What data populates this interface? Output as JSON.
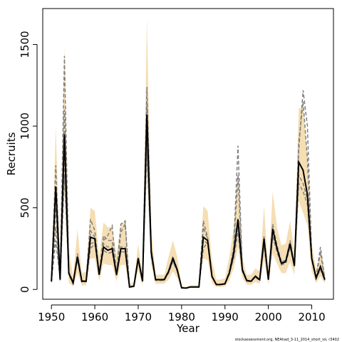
{
  "chart_data": {
    "type": "line",
    "title": "",
    "xlabel": "Year",
    "ylabel": "Recruits",
    "xlim": [
      1948,
      2015
    ],
    "ylim": [
      -60,
      1720
    ],
    "x_ticks": [
      1950,
      1960,
      1970,
      1980,
      1990,
      2000,
      2010
    ],
    "y_ticks": [
      0,
      500,
      1000,
      1500
    ],
    "footer_text": "stockassessment.org, NEAhad_3-11_2014_short_ioi, r3402",
    "colors": {
      "ci_band": "#f5deb3",
      "estimate": "#000000",
      "retro": "#808080"
    },
    "x": [
      1950,
      1951,
      1952,
      1953,
      1954,
      1955,
      1956,
      1957,
      1958,
      1959,
      1960,
      1961,
      1962,
      1963,
      1964,
      1965,
      1966,
      1967,
      1968,
      1969,
      1970,
      1971,
      1972,
      1973,
      1974,
      1975,
      1976,
      1977,
      1978,
      1979,
      1980,
      1981,
      1982,
      1983,
      1984,
      1985,
      1986,
      1987,
      1988,
      1989,
      1990,
      1991,
      1992,
      1993,
      1994,
      1995,
      1996,
      1997,
      1998,
      1999,
      2000,
      2001,
      2002,
      2003,
      2004,
      2005,
      2006,
      2007,
      2008,
      2009,
      2010,
      2011,
      2012,
      2013
    ],
    "estimate": [
      50,
      630,
      60,
      950,
      100,
      40,
      200,
      50,
      50,
      320,
      310,
      90,
      260,
      240,
      250,
      90,
      250,
      250,
      15,
      20,
      190,
      50,
      1070,
      230,
      60,
      60,
      60,
      110,
      190,
      120,
      10,
      8,
      15,
      15,
      15,
      320,
      300,
      80,
      30,
      30,
      35,
      100,
      220,
      430,
      120,
      55,
      50,
      80,
      60,
      310,
      60,
      370,
      250,
      160,
      170,
      280,
      145,
      780,
      730,
      580,
      190,
      70,
      140,
      60
    ],
    "ci_upper": [
      80,
      1000,
      120,
      1490,
      240,
      80,
      370,
      100,
      110,
      500,
      480,
      200,
      410,
      380,
      380,
      210,
      400,
      420,
      30,
      45,
      280,
      80,
      1660,
      380,
      90,
      90,
      90,
      200,
      300,
      200,
      20,
      15,
      25,
      25,
      25,
      510,
      480,
      180,
      60,
      60,
      70,
      200,
      380,
      720,
      200,
      90,
      90,
      130,
      110,
      510,
      100,
      600,
      380,
      270,
      280,
      420,
      230,
      1110,
      1110,
      820,
      280,
      120,
      230,
      100
    ],
    "ci_lower": [
      20,
      380,
      30,
      600,
      40,
      20,
      100,
      25,
      25,
      190,
      190,
      50,
      160,
      150,
      150,
      50,
      150,
      150,
      8,
      10,
      120,
      25,
      730,
      150,
      35,
      35,
      35,
      60,
      110,
      70,
      5,
      4,
      8,
      8,
      8,
      190,
      180,
      40,
      15,
      15,
      18,
      55,
      130,
      260,
      70,
      30,
      28,
      45,
      35,
      180,
      30,
      220,
      160,
      100,
      100,
      170,
      90,
      540,
      470,
      390,
      110,
      40,
      80,
      35
    ],
    "retro_series": [
      {
        "values": [
          45,
          380,
          55,
          800,
          90,
          35,
          180,
          45,
          48,
          280,
          290,
          85,
          280,
          260,
          260,
          85,
          260,
          260,
          14,
          18,
          180,
          48,
          920,
          200,
          55,
          55,
          55,
          100,
          170,
          110,
          10,
          8,
          14,
          14,
          14,
          300,
          280,
          75,
          30,
          30,
          32,
          95,
          200,
          390,
          110,
          50,
          48,
          75,
          55,
          280,
          55,
          330,
          230,
          150,
          160,
          260,
          140,
          700,
          650,
          550,
          180,
          65,
          130,
          55
        ]
      },
      {
        "values": [
          55,
          760,
          65,
          1430,
          110,
          45,
          220,
          55,
          52,
          430,
          360,
          100,
          300,
          330,
          390,
          95,
          400,
          420,
          16,
          22,
          200,
          52,
          1240,
          250,
          62,
          62,
          62,
          115,
          200,
          125,
          11,
          9,
          16,
          16,
          16,
          420,
          320,
          85,
          32,
          32,
          38,
          110,
          260,
          880,
          130,
          58,
          52,
          85,
          62,
          330,
          65,
          400,
          270,
          170,
          180,
          300,
          150,
          850,
          1220,
          1000,
          200,
          75,
          260,
          65
        ]
      },
      {
        "values": [
          50,
          500,
          60,
          1100,
          100,
          40,
          210,
          50,
          50,
          360,
          320,
          95,
          330,
          300,
          300,
          95,
          350,
          400,
          15,
          20,
          195,
          50,
          1150,
          240,
          60,
          60,
          60,
          110,
          185,
          118,
          10,
          8,
          15,
          15,
          15,
          380,
          310,
          82,
          31,
          31,
          36,
          105,
          240,
          700,
          125,
          56,
          50,
          82,
          60,
          300,
          60,
          380,
          260,
          165,
          175,
          290,
          148,
          900,
          1150,
          800,
          195,
          72,
          230,
          62
        ]
      },
      {
        "values": [
          48,
          300,
          58,
          700,
          95,
          38,
          190,
          48,
          50,
          250,
          280,
          90,
          240,
          220,
          230,
          88,
          230,
          230,
          14,
          19,
          175,
          49,
          850,
          210,
          58,
          58,
          58,
          105,
          175,
          115,
          10,
          8,
          14,
          14,
          14,
          250,
          290,
          78,
          30,
          30,
          34,
          100,
          190,
          350,
          115,
          52,
          49,
          78,
          58,
          270,
          58,
          320,
          240,
          155,
          165,
          270,
          142,
          650,
          600,
          520,
          185,
          68,
          120,
          58
        ]
      }
    ]
  }
}
